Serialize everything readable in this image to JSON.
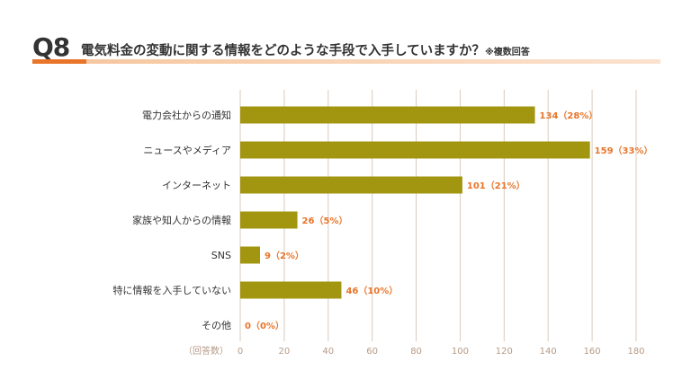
{
  "header": {
    "q_number": "Q8",
    "title": "電気料金の変動に関する情報をどのような手段で入手していますか？",
    "note": "※複数回答"
  },
  "colors": {
    "bar": "#a29510",
    "value_label": "#e8752a",
    "accent": "#e8752a",
    "grid": "#d9cbbd",
    "tick": "#b59a86"
  },
  "chart_data": {
    "type": "bar",
    "orientation": "horizontal",
    "categories": [
      "電力会社からの通知",
      "ニュースやメディア",
      "インターネット",
      "家族や知人からの情報",
      "SNS",
      "特に情報を入手していない",
      "その他"
    ],
    "values": [
      134,
      159,
      101,
      26,
      9,
      46,
      0
    ],
    "value_labels": [
      "134（28%）",
      "159（33%）",
      "101（21%）",
      "26（5%）",
      "9（2%）",
      "46（10%）",
      "0（0%）"
    ],
    "xlabel": "（回答数）",
    "xlim": [
      0,
      180
    ],
    "xticks": [
      0,
      20,
      40,
      60,
      80,
      100,
      120,
      140,
      160,
      180
    ],
    "grid": true
  }
}
